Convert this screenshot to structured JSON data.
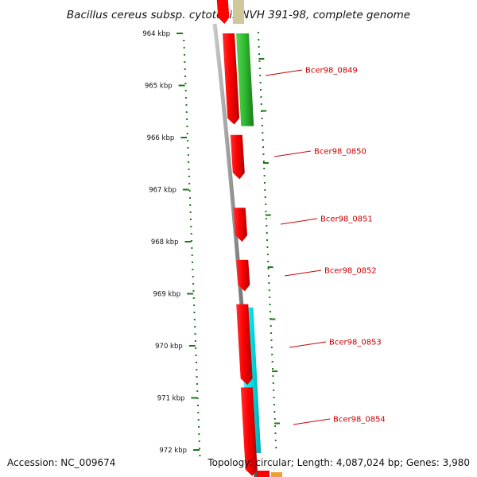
{
  "title": "Bacillus cereus subsp. cytotoxis NVH 391-98, complete genome",
  "footer": {
    "accession": "Accession: NC_009674",
    "topology": "Topology: circular; Length: 4,087,024 bp; Genes: 3,980"
  },
  "ruler": {
    "unit": "kbp",
    "ticks": [
      "964 kbp",
      "965 kbp",
      "966 kbp",
      "967 kbp",
      "968 kbp",
      "969 kbp",
      "970 kbp",
      "971 kbp",
      "972 kbp"
    ]
  },
  "genes": [
    {
      "id": "Bcer98_0849",
      "label": "Bcer98_0849",
      "strand": "+",
      "start_kbp": 964.0,
      "end_kbp": 965.75,
      "has_label": true
    },
    {
      "id": "Bcer98_0850",
      "label": "Bcer98_0850",
      "strand": "+",
      "start_kbp": 965.95,
      "end_kbp": 966.8,
      "has_label": true
    },
    {
      "id": "Bcer98_0851",
      "label": "Bcer98_0851",
      "strand": "+",
      "start_kbp": 967.35,
      "end_kbp": 968.0,
      "has_label": true
    },
    {
      "id": "Bcer98_0852",
      "label": "Bcer98_0852",
      "strand": "+",
      "start_kbp": 968.35,
      "end_kbp": 968.95,
      "has_label": true
    },
    {
      "id": "Bcer98_0853",
      "label": "Bcer98_0853",
      "strand": "+",
      "start_kbp": 969.2,
      "end_kbp": 970.75,
      "has_label": true
    },
    {
      "id": "Bcer98_0854",
      "label": "Bcer98_0854",
      "strand": "+",
      "start_kbp": 970.8,
      "end_kbp": 972.5,
      "has_label": true
    },
    {
      "id": "gene-top",
      "label": "",
      "strand": "+",
      "start_kbp": 963.4,
      "end_kbp": 963.85,
      "has_label": false
    }
  ],
  "colors": {
    "cds": "#ff0000",
    "gene_track": "#2db82d",
    "cyan_track": "#00e5ee",
    "backbone": "#888888",
    "ruler_dots": "#1a7a1a",
    "label_text": "#cc0000",
    "label_line": "#cc0000",
    "khaki_track": "#cfc89a",
    "orange_track": "#f0a030"
  }
}
